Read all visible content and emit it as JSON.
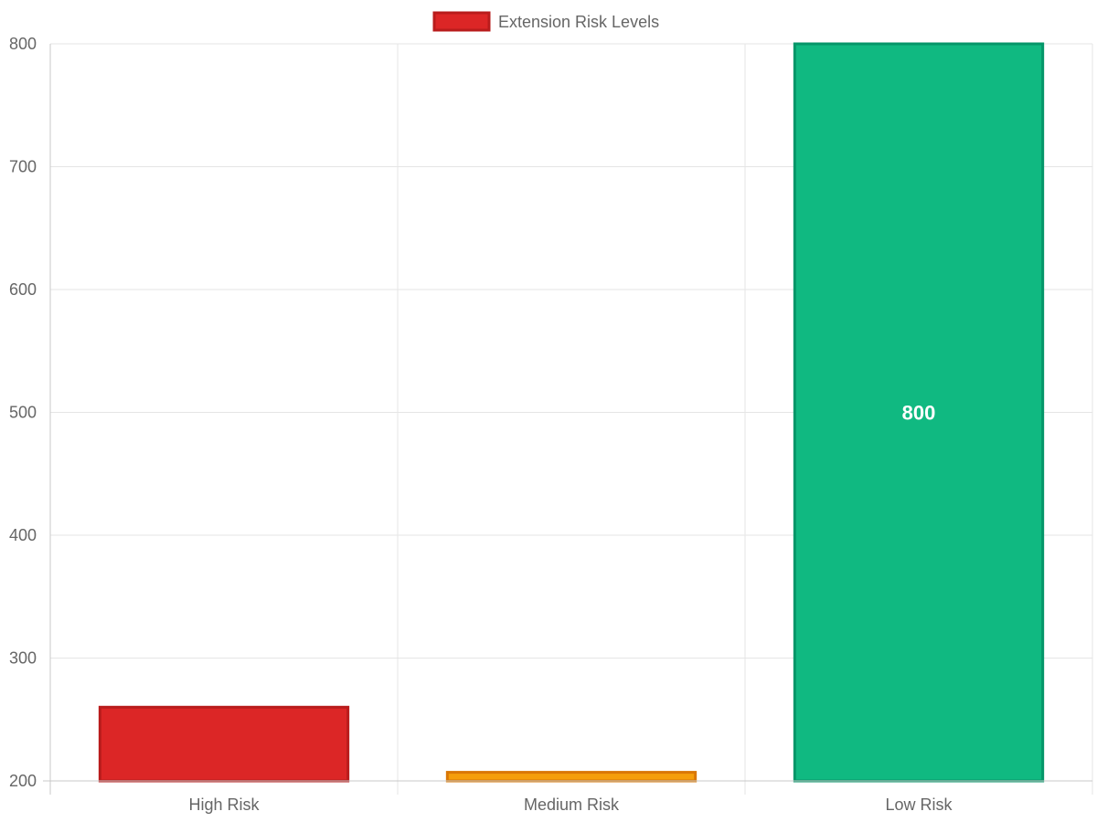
{
  "chart_data": {
    "type": "bar",
    "categories": [
      "High Risk",
      "Medium Risk",
      "Low Risk"
    ],
    "series": [
      {
        "name": "Extension Risk Levels",
        "values": [
          260,
          207,
          800
        ]
      }
    ],
    "data_labels": [
      "",
      "",
      "800"
    ],
    "yticks": [
      200,
      300,
      400,
      500,
      600,
      700,
      800
    ],
    "ylim": [
      200,
      800
    ],
    "grid": true,
    "legend_position": "top",
    "colors": {
      "fills": [
        "#dc2626",
        "#f59e0b",
        "#10b981"
      ],
      "borders": [
        "#b91c1c",
        "#d97706",
        "#059669"
      ],
      "legend_fill": "#dc2626",
      "legend_border": "#b91c1c",
      "grid": "#e5e5e5",
      "axis": "#c8c8c8",
      "text": "#666666"
    }
  }
}
